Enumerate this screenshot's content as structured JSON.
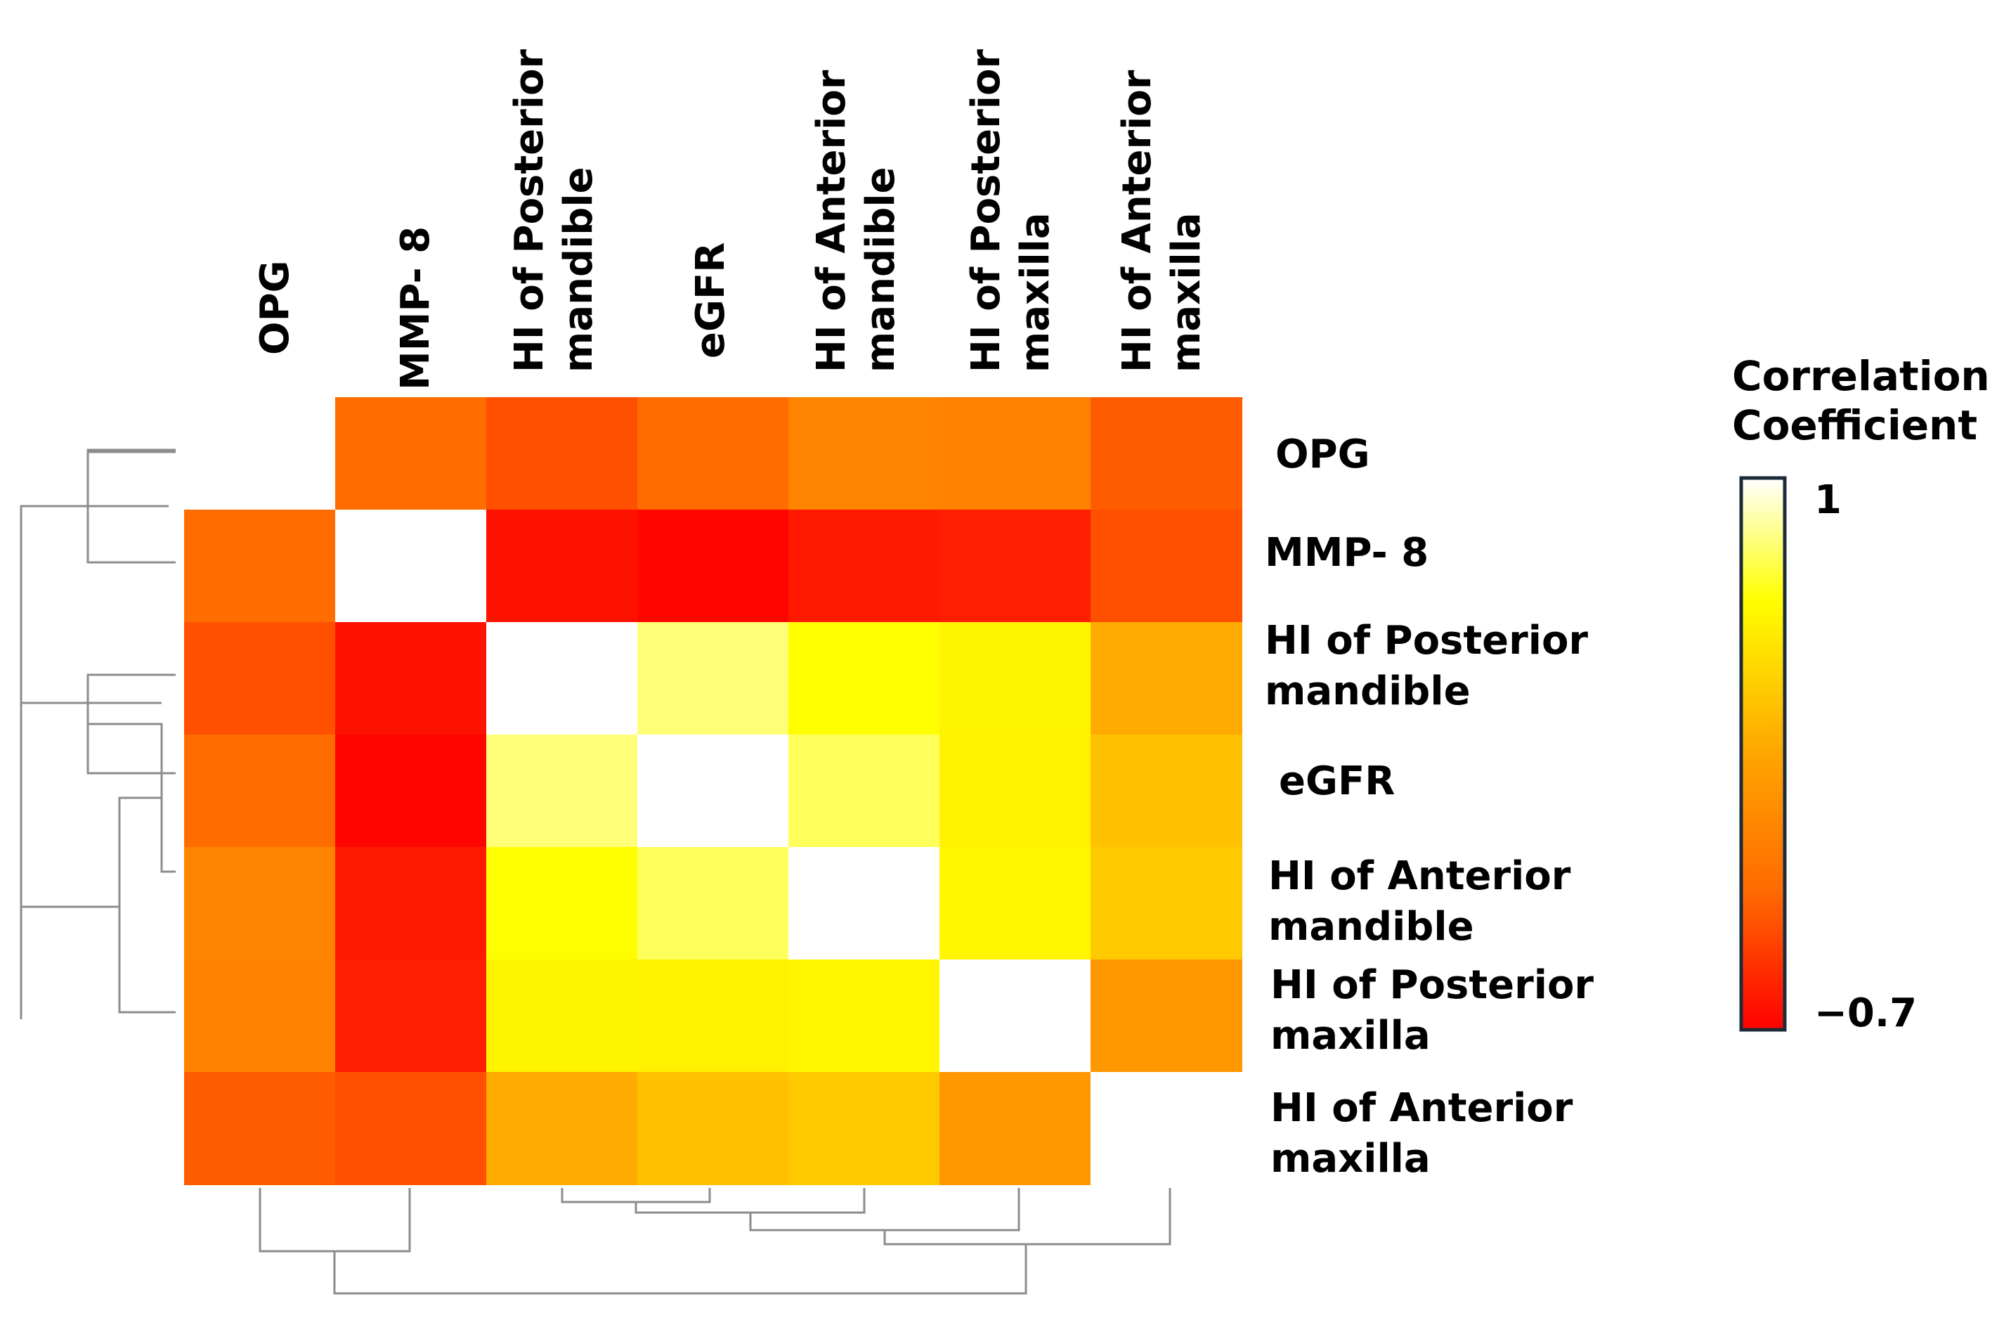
{
  "chart_data": {
    "type": "heatmap",
    "title": "",
    "variables": [
      "OPG",
      "MMP- 8",
      "HI of Posterior mandible",
      "eGFR",
      "HI of Anterior mandible",
      "HI of Posterior maxilla",
      "HI of Anterior maxilla"
    ],
    "column_labels": [
      [
        "OPG"
      ],
      [
        "MMP- 8"
      ],
      [
        "HI of Posterior",
        "mandible"
      ],
      [
        "eGFR"
      ],
      [
        "HI of Anterior",
        "mandible"
      ],
      [
        "HI of Posterior",
        "maxilla"
      ],
      [
        "HI of Anterior",
        "maxilla"
      ]
    ],
    "row_labels": [
      [
        "OPG"
      ],
      [
        "MMP- 8"
      ],
      [
        "HI of Posterior",
        "mandible"
      ],
      [
        "eGFR"
      ],
      [
        "HI of Anterior",
        "mandible"
      ],
      [
        "HI of Posterior",
        "maxilla"
      ],
      [
        "HI of Anterior",
        "maxilla"
      ]
    ],
    "values": [
      [
        1.0,
        -0.25,
        -0.38,
        -0.26,
        -0.08,
        -0.1,
        -0.33
      ],
      [
        -0.25,
        1.0,
        -0.63,
        -0.68,
        -0.6,
        -0.58,
        -0.38
      ],
      [
        -0.38,
        -0.63,
        1.0,
        0.8,
        0.62,
        0.57,
        0.18
      ],
      [
        -0.26,
        -0.68,
        0.8,
        1.0,
        0.76,
        0.55,
        0.3
      ],
      [
        -0.08,
        -0.6,
        0.62,
        0.76,
        1.0,
        0.58,
        0.34
      ],
      [
        -0.1,
        -0.58,
        0.57,
        0.55,
        0.58,
        1.0,
        0.05
      ],
      [
        -0.33,
        -0.38,
        0.18,
        0.3,
        0.34,
        0.05,
        1.0
      ]
    ],
    "hidden_cells": [
      [
        0,
        0
      ],
      [
        6,
        6
      ]
    ],
    "colorbar": {
      "title": [
        "Correlation",
        "Coefficient"
      ],
      "min": -0.7,
      "max": 1,
      "min_label": "−0.7",
      "max_label": "1",
      "colors": [
        "#ff0000",
        "#ff6a00",
        "#ffa500",
        "#ffff00",
        "#ffffff"
      ]
    },
    "dendrogram": "hierarchical clustering tree on rows (left) and columns (bottom)"
  }
}
